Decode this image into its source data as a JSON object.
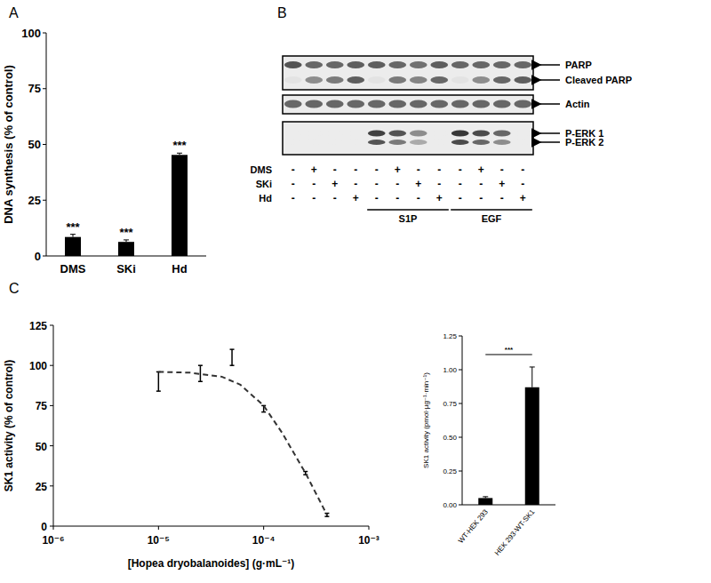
{
  "chart_data": [
    {
      "panel": "A",
      "type": "bar",
      "categories": [
        "DMS",
        "SKi",
        "Hd"
      ],
      "values": [
        8.5,
        6.3,
        45.3
      ],
      "errors": [
        1.2,
        0.9,
        0.8
      ],
      "color": "#000000",
      "ylabel": "DNA synthesis (% of control)",
      "ylim": [
        0,
        100
      ],
      "yticks": [
        0,
        25,
        50,
        75,
        100
      ],
      "annotations": [
        "***",
        "***",
        "***"
      ]
    },
    {
      "panel": "C",
      "type": "line",
      "xlabel": "[Hopea dryobalanoides] (g·mL⁻¹)",
      "ylabel": "SK1 activity (% of control)",
      "log": "x",
      "xlim": [
        1e-06,
        0.001
      ],
      "xticks": [
        {
          "value": 1e-06,
          "label": "10⁻⁶"
        },
        {
          "value": 1e-05,
          "label": "10⁻⁵"
        },
        {
          "value": 0.0001,
          "label": "10⁻⁴"
        },
        {
          "value": 0.001,
          "label": "10⁻³"
        }
      ],
      "ylim": [
        0,
        125
      ],
      "yticks": [
        0,
        25,
        50,
        75,
        100,
        125
      ],
      "series": [
        {
          "type": "scatter",
          "marker": "none",
          "color": "#000000",
          "x": [
            1e-05,
            2.5e-05,
            5e-05,
            0.0001,
            0.00025,
            0.0004
          ],
          "values": [
            90,
            95,
            105,
            73,
            33,
            7
          ],
          "errors": [
            6,
            5,
            5,
            2,
            1,
            1
          ]
        },
        {
          "type": "line",
          "line_style": "dashed",
          "color": "#333333",
          "x": [
            1e-05,
            2e-05,
            4e-05,
            6e-05,
            0.0001,
            0.00015,
            0.00025,
            0.0004
          ],
          "values": [
            96,
            95.5,
            93,
            88,
            75,
            58,
            33,
            7
          ]
        }
      ]
    },
    {
      "type": "bar",
      "categories": [
        "WT-HEK 293",
        "HEK 293-WT-SK1"
      ],
      "values": [
        0.05,
        0.87
      ],
      "errors": [
        0.01,
        0.15
      ],
      "color": "#000000",
      "ylabel": "SK1 activity (pmol·µg⁻¹·min⁻¹)",
      "ylim": [
        0,
        1.25
      ],
      "yticks": [
        {
          "value": 0,
          "label": "0.00"
        },
        {
          "value": 0.25,
          "label": "0.25"
        },
        {
          "value": 0.5,
          "label": "0.50"
        },
        {
          "value": 0.75,
          "label": "0.75"
        },
        {
          "value": 1,
          "label": "1.00"
        },
        {
          "value": 1.25,
          "label": "1.25"
        }
      ],
      "annotations": [
        "***"
      ]
    }
  ],
  "blot": {
    "panel": "B",
    "bands": [
      {
        "label": "PARP",
        "intensity": [
          0.8,
          0.7,
          0.7,
          0.75,
          0.75,
          0.7,
          0.65,
          0.75,
          0.7,
          0.7,
          0.7,
          0.7
        ]
      },
      {
        "label": "Cleaved PARP",
        "intensity": [
          0.05,
          0.5,
          0.6,
          0.75,
          0.05,
          0.6,
          0.55,
          0.7,
          0.05,
          0.5,
          0.7,
          0.75
        ]
      },
      {
        "label": "Actin",
        "intensity": [
          0.7,
          0.7,
          0.7,
          0.7,
          0.7,
          0.7,
          0.7,
          0.7,
          0.7,
          0.7,
          0.7,
          0.7
        ]
      },
      {
        "label": "P-ERK 1",
        "intensity": [
          0,
          0,
          0,
          0,
          0.9,
          0.8,
          0.5,
          0,
          0.95,
          0.85,
          0.7,
          0
        ]
      },
      {
        "label": "P-ERK 2",
        "intensity": [
          0,
          0,
          0,
          0,
          0.8,
          0.6,
          0.35,
          0,
          0.85,
          0.7,
          0.5,
          0
        ]
      }
    ],
    "rows": [
      {
        "label": "DMS",
        "signs": [
          "-",
          "+",
          "-",
          "-",
          "-",
          "+",
          "-",
          "-",
          "-",
          "+",
          "-",
          "-"
        ]
      },
      {
        "label": "SKi",
        "signs": [
          "-",
          "-",
          "+",
          "-",
          "-",
          "-",
          "+",
          "-",
          "-",
          "-",
          "+",
          "-"
        ]
      },
      {
        "label": "Hd",
        "signs": [
          "-",
          "-",
          "-",
          "+",
          "-",
          "-",
          "-",
          "+",
          "-",
          "-",
          "-",
          "+"
        ]
      }
    ],
    "groups": [
      {
        "label": "S1P",
        "start": 4,
        "end": 7
      },
      {
        "label": "EGF",
        "start": 8,
        "end": 11
      }
    ]
  }
}
